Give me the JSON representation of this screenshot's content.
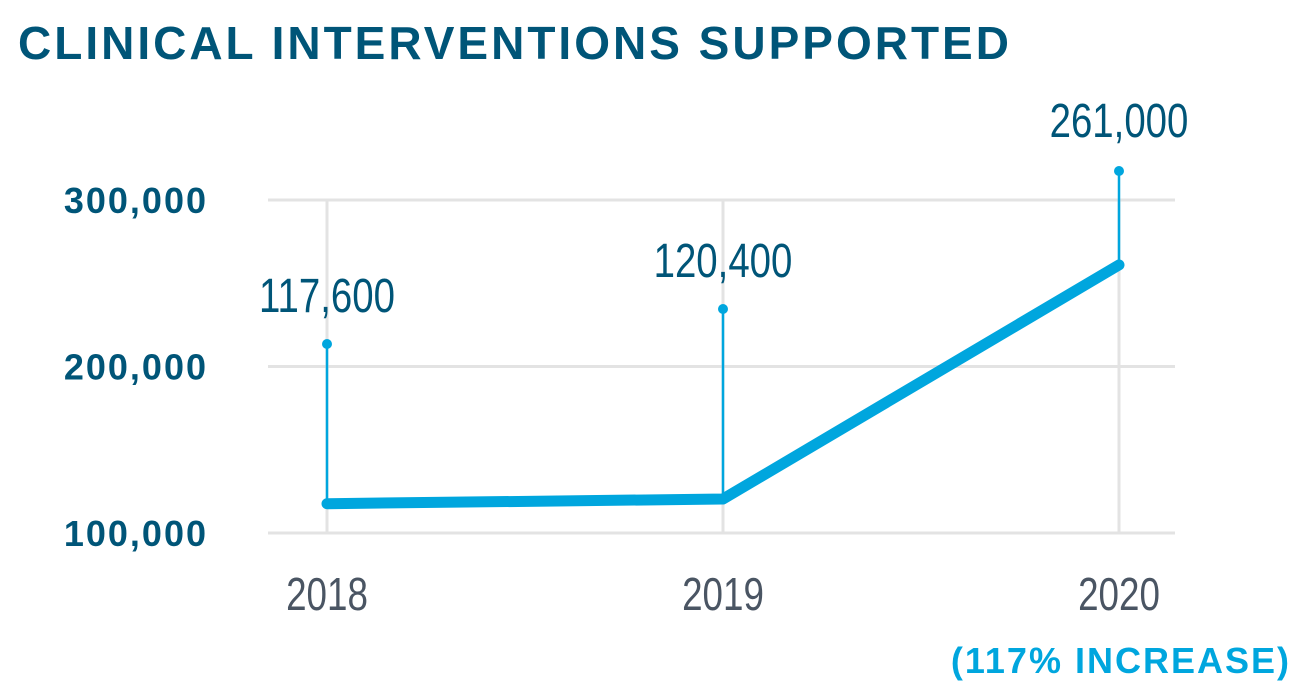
{
  "chart_data": {
    "type": "line",
    "title": "CLINICAL INTERVENTIONS SUPPORTED",
    "categories": [
      "2018",
      "2019",
      "2020"
    ],
    "values": [
      117600,
      120400,
      261000
    ],
    "data_labels": [
      "117,600",
      "120,400",
      "261,000"
    ],
    "yticks": [
      100000,
      200000,
      300000
    ],
    "ytick_labels": [
      "100,000",
      "200,000",
      "300,000"
    ],
    "ylim": [
      100000,
      300000
    ],
    "grid": true,
    "annotation": "(117% INCREASE)",
    "colors": {
      "title": "#005578",
      "line": "#00a6de",
      "xtick": "#4a5563",
      "grid": "#e3e3e3"
    }
  }
}
